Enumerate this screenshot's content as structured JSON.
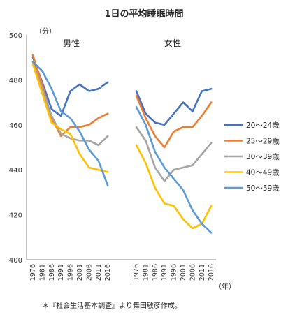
{
  "chart_data": {
    "type": "line",
    "title": "1日の平均睡眠時間",
    "ylabel": "（分）",
    "xlabel": "（年）",
    "note": "＊『社会生活基本調査』より舞田敏彦作成。",
    "ylim": [
      400,
      500
    ],
    "yticks": [
      "400",
      "420",
      "440",
      "460",
      "480",
      "500"
    ],
    "x": [
      "1976",
      "1981",
      "1986",
      "1991",
      "1996",
      "2001",
      "2006",
      "2011",
      "2016"
    ],
    "legend_position": "right",
    "panels": [
      {
        "label": "男性",
        "series": [
          {
            "name": "20～24歳",
            "color": "#4472C4",
            "values": [
              490,
              479,
              467,
              464,
              475,
              478,
              475,
              476,
              479
            ]
          },
          {
            "name": "25～29歳",
            "color": "#ED7D31",
            "values": [
              491,
              478,
              463,
              455,
              459,
              459,
              460,
              463,
              465
            ]
          },
          {
            "name": "30～39歳",
            "color": "#A5A5A5",
            "values": [
              488,
              476,
              464,
              456,
              454,
              453,
              453,
              451,
              455
            ]
          },
          {
            "name": "40～49歳",
            "color": "#FFC000",
            "values": [
              487,
              474,
              461,
              458,
              456,
              447,
              441,
              440,
              439
            ]
          },
          {
            "name": "50～59歳",
            "color": "#5B9BD5",
            "values": [
              488,
              484,
              476,
              466,
              463,
              457,
              449,
              444,
              433
            ]
          }
        ]
      },
      {
        "label": "女性",
        "series": [
          {
            "name": "20～24歳",
            "color": "#4472C4",
            "values": [
              475,
              465,
              461,
              460,
              465,
              470,
              466,
              475,
              476
            ]
          },
          {
            "name": "25～29歳",
            "color": "#ED7D31",
            "values": [
              473,
              463,
              455,
              450,
              457,
              459,
              459,
              464,
              470
            ]
          },
          {
            "name": "30～39歳",
            "color": "#A5A5A5",
            "values": [
              459,
              453,
              441,
              435,
              440,
              441,
              442,
              447,
              452
            ]
          },
          {
            "name": "40～49歳",
            "color": "#FFC000",
            "values": [
              451,
              443,
              432,
              425,
              424,
              418,
              414,
              416,
              424
            ]
          },
          {
            "name": "50～59歳",
            "color": "#5B9BD5",
            "values": [
              468,
              460,
              448,
              441,
              436,
              431,
              422,
              416,
              412
            ]
          }
        ]
      }
    ]
  }
}
